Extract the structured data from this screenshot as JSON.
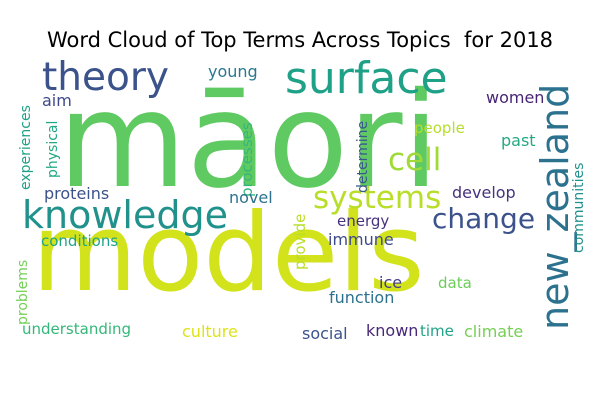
{
  "chart_data": {
    "type": "wordcloud",
    "title": "Word Cloud of Top Terms Across Topics  for 2018",
    "words": [
      {
        "text": "māori",
        "color": "#5fc962"
      },
      {
        "text": "models",
        "color": "#d2e21b"
      },
      {
        "text": "surface",
        "color": "#1fa187"
      },
      {
        "text": "theory",
        "color": "#3b528b"
      },
      {
        "text": "knowledge",
        "color": "#21918c"
      },
      {
        "text": "new_zealand",
        "color": "#2c728e"
      },
      {
        "text": "systems",
        "color": "#b8de29"
      },
      {
        "text": "cell",
        "color": "#a0da39"
      },
      {
        "text": "change",
        "color": "#3b528b"
      },
      {
        "text": "young",
        "color": "#2a788e"
      },
      {
        "text": "aim",
        "color": "#3e4a89"
      },
      {
        "text": "experiences",
        "color": "#1fa187"
      },
      {
        "text": "physical",
        "color": "#22a884"
      },
      {
        "text": "processes",
        "color": "#35b779"
      },
      {
        "text": "determine",
        "color": "#38598c"
      },
      {
        "text": "women",
        "color": "#482475"
      },
      {
        "text": "people",
        "color": "#b5de2b"
      },
      {
        "text": "past",
        "color": "#24aa83"
      },
      {
        "text": "communities",
        "color": "#21918c"
      },
      {
        "text": "proteins",
        "color": "#3b528b"
      },
      {
        "text": "novel",
        "color": "#2c728e"
      },
      {
        "text": "develop",
        "color": "#46327e"
      },
      {
        "text": "conditions",
        "color": "#20a486"
      },
      {
        "text": "energy",
        "color": "#46327e"
      },
      {
        "text": "immune",
        "color": "#3e4a89"
      },
      {
        "text": "provide",
        "color": "#b8de29"
      },
      {
        "text": "problems",
        "color": "#73d056"
      },
      {
        "text": "ice",
        "color": "#433e85"
      },
      {
        "text": "data",
        "color": "#6ccd5a"
      },
      {
        "text": "function",
        "color": "#2c728e"
      },
      {
        "text": "understanding",
        "color": "#35b779"
      },
      {
        "text": "culture",
        "color": "#dde318"
      },
      {
        "text": "social",
        "color": "#3b528b"
      },
      {
        "text": "known",
        "color": "#482878"
      },
      {
        "text": "time",
        "color": "#20a386"
      },
      {
        "text": "climate",
        "color": "#75d054"
      }
    ]
  }
}
